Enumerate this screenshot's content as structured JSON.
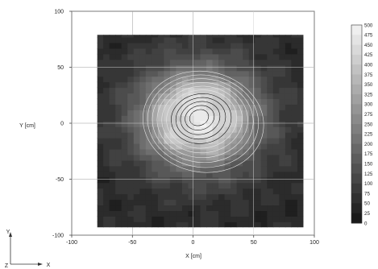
{
  "chart_data": {
    "type": "heatmap",
    "title": "",
    "xlabel": "X [cm]",
    "ylabel": "Y [cm]",
    "xlim": [
      -100,
      100
    ],
    "ylim": [
      -100,
      100
    ],
    "x_ticks": [
      -100,
      -50,
      0,
      50,
      100
    ],
    "y_ticks": [
      100,
      50,
      0,
      -50,
      -100
    ],
    "grid": true,
    "data_extent": {
      "x": [
        -79,
        91
      ],
      "y": [
        -93,
        79
      ]
    },
    "colorbar": {
      "placement": "right",
      "min": 0,
      "max": 500,
      "ticks": [
        500,
        475,
        450,
        425,
        400,
        375,
        350,
        325,
        300,
        275,
        250,
        225,
        200,
        175,
        150,
        125,
        100,
        75,
        50,
        25,
        0
      ]
    },
    "field": {
      "description_of_levels": "peak near center",
      "peak": {
        "x": 5,
        "y": 5,
        "value": 480
      },
      "background_value": 50
    },
    "orientation_axes": {
      "up": "Y",
      "right": "X",
      "origin": "Z"
    }
  }
}
